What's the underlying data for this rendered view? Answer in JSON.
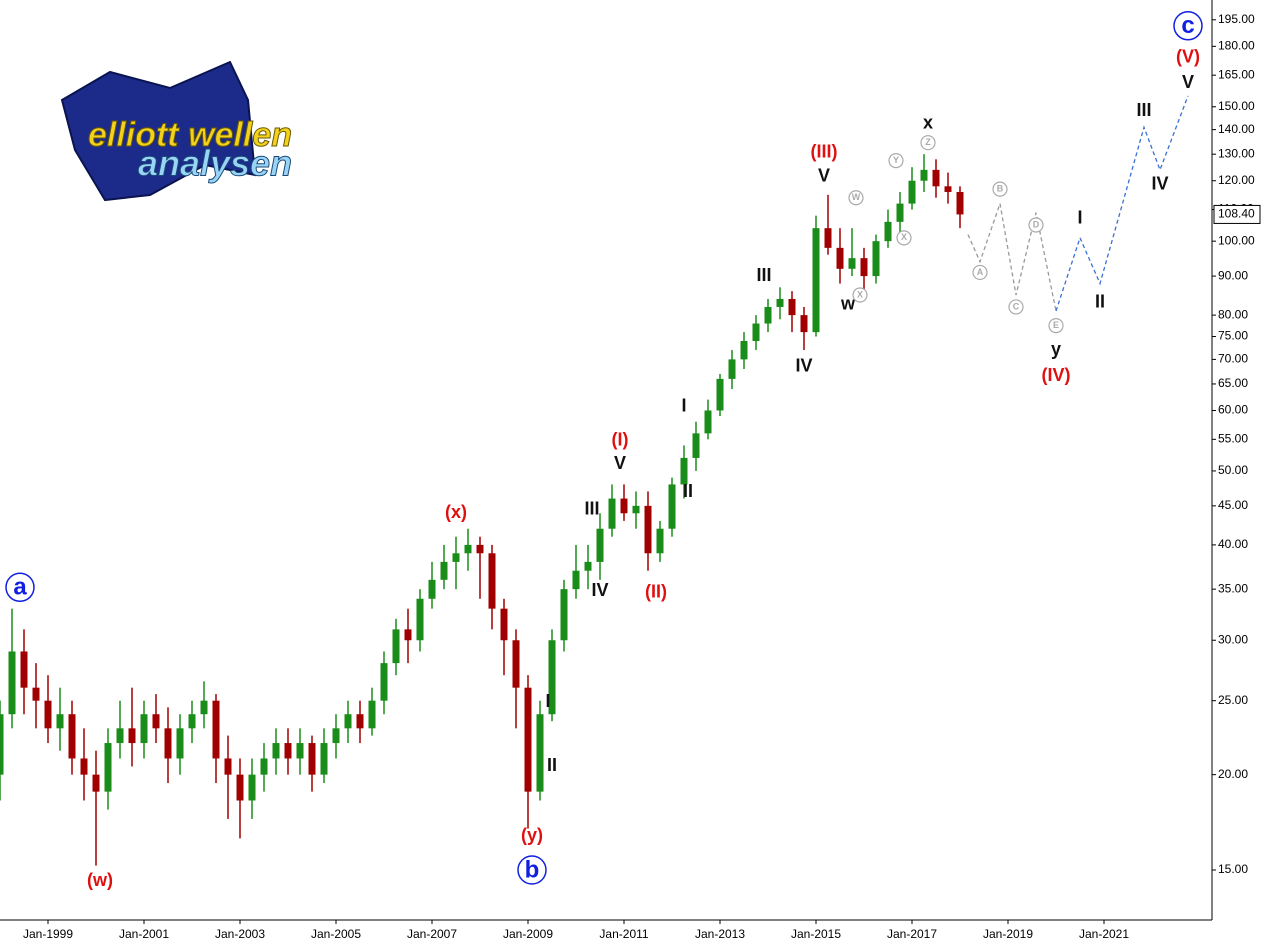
{
  "logo": {
    "line1": "elliott wellen",
    "line2": "analysen"
  },
  "chart_data": {
    "type": "candlestick",
    "log_scale": true,
    "xlim": [
      "Jan-1998",
      "Apr-2023"
    ],
    "xticks": [
      "Jan-1999",
      "Jan-2001",
      "Jan-2003",
      "Jan-2005",
      "Jan-2007",
      "Jan-2009",
      "Jan-2011",
      "Jan-2013",
      "Jan-2015",
      "Jan-2017",
      "Jan-2019",
      "Jan-2021"
    ],
    "ylim": [
      12.9,
      207
    ],
    "yticks": [
      {
        "value": 15,
        "label": "15.00"
      },
      {
        "value": 20,
        "label": "20.00"
      },
      {
        "value": 25,
        "label": "25.00"
      },
      {
        "value": 30,
        "label": "30.00"
      },
      {
        "value": 35,
        "label": "35.00"
      },
      {
        "value": 40,
        "label": "40.00"
      },
      {
        "value": 45,
        "label": "45.00"
      },
      {
        "value": 50,
        "label": "50.00"
      },
      {
        "value": 55,
        "label": "55.00"
      },
      {
        "value": 60,
        "label": "60.00"
      },
      {
        "value": 65,
        "label": "65.00"
      },
      {
        "value": 70,
        "label": "70.00"
      },
      {
        "value": 75,
        "label": "75.00"
      },
      {
        "value": 80,
        "label": "80.00"
      },
      {
        "value": 90,
        "label": "90.00"
      },
      {
        "value": 100,
        "label": "100.00"
      },
      {
        "value": 110,
        "label": "110.00"
      },
      {
        "value": 120,
        "label": "120.00"
      },
      {
        "value": 130,
        "label": "130.00"
      },
      {
        "value": 140,
        "label": "140.00"
      },
      {
        "value": 150,
        "label": "150.00"
      },
      {
        "value": 165,
        "label": "165.00"
      },
      {
        "value": 180,
        "label": "180.00"
      },
      {
        "value": 195,
        "label": "195.00"
      }
    ],
    "up_color": "#1a8c1a",
    "down_color": "#a00000",
    "x": [
      "Jan-1998",
      "Apr-1998",
      "Jul-1998",
      "Oct-1998",
      "Jan-1999",
      "Apr-1999",
      "Jul-1999",
      "Oct-1999",
      "Jan-2000",
      "Apr-2000",
      "Jul-2000",
      "Oct-2000",
      "Jan-2001",
      "Apr-2001",
      "Jul-2001",
      "Oct-2001",
      "Jan-2002",
      "Apr-2002",
      "Jul-2002",
      "Oct-2002",
      "Jan-2003",
      "Apr-2003",
      "Jul-2003",
      "Oct-2003",
      "Jan-2004",
      "Apr-2004",
      "Jul-2004",
      "Oct-2004",
      "Jan-2005",
      "Apr-2005",
      "Jul-2005",
      "Oct-2005",
      "Jan-2006",
      "Apr-2006",
      "Jul-2006",
      "Oct-2006",
      "Jan-2007",
      "Apr-2007",
      "Jul-2007",
      "Oct-2007",
      "Jan-2008",
      "Apr-2008",
      "Jul-2008",
      "Oct-2008",
      "Jan-2009",
      "Apr-2009",
      "Jul-2009",
      "Oct-2009",
      "Jan-2010",
      "Apr-2010",
      "Jul-2010",
      "Oct-2010",
      "Jan-2011",
      "Apr-2011",
      "Jul-2011",
      "Oct-2011",
      "Jan-2012",
      "Apr-2012",
      "Jul-2012",
      "Oct-2012",
      "Jan-2013",
      "Apr-2013",
      "Jul-2013",
      "Oct-2013",
      "Jan-2014",
      "Apr-2014",
      "Jul-2014",
      "Oct-2014",
      "Jan-2015",
      "Apr-2015",
      "Jul-2015",
      "Oct-2015",
      "Jan-2016",
      "Apr-2016",
      "Jul-2016",
      "Oct-2016",
      "Jan-2017",
      "Apr-2017",
      "Jul-2017",
      "Oct-2017",
      "Jan-2018"
    ],
    "open": [
      20,
      24,
      29,
      26,
      25,
      23,
      24,
      21,
      20,
      19,
      22,
      23,
      22,
      24,
      23,
      21,
      23,
      24,
      25,
      21,
      20,
      18.5,
      20,
      21,
      22,
      21,
      22,
      20,
      22,
      23,
      24,
      23,
      25,
      28,
      31,
      30,
      34,
      36,
      38,
      39,
      40,
      39,
      33,
      30,
      26,
      19,
      24,
      30,
      35,
      37,
      38,
      42,
      46,
      44,
      45,
      39,
      42,
      48,
      52,
      56,
      60,
      66,
      70,
      74,
      78,
      82,
      84,
      80,
      76,
      104,
      98,
      92,
      95,
      90,
      100,
      106,
      112,
      120,
      124,
      118,
      116
    ],
    "high": [
      25,
      33,
      31,
      28,
      27,
      26,
      25,
      23,
      21.5,
      23,
      25,
      26,
      25,
      25.5,
      24.5,
      24,
      25,
      26.5,
      25.5,
      22.5,
      21,
      21,
      22,
      23,
      23,
      23,
      22.5,
      23,
      24,
      25,
      25,
      26,
      29,
      32,
      33,
      35,
      38,
      40,
      41,
      42,
      41,
      40,
      34,
      31,
      27,
      25,
      31,
      36,
      40,
      40,
      44,
      48,
      48,
      47,
      47,
      43,
      49,
      54,
      58,
      62,
      67,
      72,
      76,
      80,
      84,
      87,
      86,
      82,
      108,
      115,
      104,
      104,
      98,
      102,
      110,
      116,
      125,
      130,
      128,
      123,
      118
    ],
    "low": [
      18.5,
      23,
      24,
      23,
      22,
      21.5,
      20,
      18.5,
      15.2,
      18,
      21,
      20.5,
      21,
      22,
      19.5,
      20,
      22,
      23,
      19.5,
      17.5,
      16.5,
      17.5,
      19,
      20,
      20,
      20,
      19,
      19.5,
      21,
      22,
      22,
      22.5,
      24,
      27,
      28,
      29,
      33,
      35,
      35,
      37,
      34,
      31,
      27,
      23,
      17,
      18.5,
      23.5,
      29,
      34,
      35,
      36,
      41,
      43,
      42,
      37,
      38,
      41,
      46,
      50,
      55,
      59,
      64,
      68,
      72,
      76,
      79,
      76,
      72,
      75,
      96,
      88,
      90,
      86,
      88,
      98,
      102,
      110,
      116,
      114,
      112,
      104
    ],
    "close": [
      24,
      29,
      26,
      25,
      23,
      24,
      21,
      20,
      19,
      22,
      23,
      22,
      24,
      23,
      21,
      23,
      24,
      25,
      21,
      20,
      18.5,
      20,
      21,
      22,
      21,
      22,
      20,
      22,
      23,
      24,
      23,
      25,
      28,
      31,
      30,
      34,
      36,
      38,
      39,
      40,
      39,
      33,
      30,
      26,
      19,
      24,
      30,
      35,
      37,
      38,
      42,
      46,
      44,
      45,
      39,
      42,
      48,
      52,
      56,
      60,
      66,
      70,
      74,
      78,
      82,
      84,
      80,
      76,
      104,
      98,
      92,
      95,
      90,
      100,
      106,
      112,
      120,
      124,
      118,
      116,
      108.4
    ],
    "last_price": {
      "value": 108.4,
      "label": "108.40"
    },
    "projections": [
      {
        "color": "#999999",
        "x": [
          "Mar-2018",
          "Jun-2018",
          "Nov-2018",
          "Mar-2019",
          "Aug-2019",
          "Jan-2020"
        ],
        "values": [
          102,
          94,
          112,
          85,
          109,
          81
        ]
      },
      {
        "color": "#3b6fd4",
        "x": [
          "Jan-2020",
          "Jul-2020",
          "Dec-2020",
          "Nov-2021",
          "Mar-2022",
          "Oct-2022"
        ],
        "values": [
          81,
          101,
          88,
          141,
          124,
          155
        ]
      }
    ],
    "annotations": [
      {
        "text": "a",
        "x": "Jun-1998",
        "y": 35.2,
        "color": "#1020e0",
        "style": "circle"
      },
      {
        "text": "(w)",
        "x": "Feb-2000",
        "y": 14.5,
        "color": "#e01010",
        "style": "plain"
      },
      {
        "text": "(x)",
        "x": "Jul-2007",
        "y": 44,
        "color": "#e01010",
        "style": "plain"
      },
      {
        "text": "(y)",
        "x": "Feb-2009",
        "y": 16.6,
        "color": "#e01010",
        "style": "plain"
      },
      {
        "text": "b",
        "x": "Feb-2009",
        "y": 15,
        "color": "#1020e0",
        "style": "circle"
      },
      {
        "text": "I",
        "x": "Jun-2009",
        "y": 24.9,
        "color": "#111111",
        "style": "plain"
      },
      {
        "text": "II",
        "x": "Jul-2009",
        "y": 20.5,
        "color": "#111111",
        "style": "plain"
      },
      {
        "text": "III",
        "x": "May-2010",
        "y": 44.5,
        "color": "#111111",
        "style": "plain"
      },
      {
        "text": "IV",
        "x": "Jul-2010",
        "y": 34.8,
        "color": "#111111",
        "style": "plain"
      },
      {
        "text": "V",
        "x": "Dec-2010",
        "y": 51,
        "color": "#111111",
        "style": "plain"
      },
      {
        "text": "(I)",
        "x": "Dec-2010",
        "y": 54.8,
        "color": "#e01010",
        "style": "plain"
      },
      {
        "text": "(II)",
        "x": "Sep-2011",
        "y": 34.6,
        "color": "#e01010",
        "style": "plain"
      },
      {
        "text": "I",
        "x": "Apr-2012",
        "y": 60.7,
        "color": "#111111",
        "style": "plain"
      },
      {
        "text": "II",
        "x": "May-2012",
        "y": 46.9,
        "color": "#111111",
        "style": "plain"
      },
      {
        "text": "III",
        "x": "Dec-2013",
        "y": 90,
        "color": "#111111",
        "style": "plain"
      },
      {
        "text": "IV",
        "x": "Oct-2014",
        "y": 68.5,
        "color": "#111111",
        "style": "plain"
      },
      {
        "text": "V",
        "x": "Mar-2015",
        "y": 121.5,
        "color": "#111111",
        "style": "plain"
      },
      {
        "text": "(III)",
        "x": "Mar-2015",
        "y": 130.6,
        "color": "#e01010",
        "style": "plain"
      },
      {
        "text": "w",
        "x": "Sep-2015",
        "y": 82.6,
        "color": "#111111",
        "style": "plain"
      },
      {
        "text": "x",
        "x": "May-2017",
        "y": 142.5,
        "color": "#111111",
        "style": "plain"
      },
      {
        "text": "y",
        "x": "Jan-2020",
        "y": 72,
        "color": "#111111",
        "style": "plain"
      },
      {
        "text": "(IV)",
        "x": "Jan-2020",
        "y": 66.5,
        "color": "#e01010",
        "style": "plain"
      },
      {
        "text": "I",
        "x": "Jul-2020",
        "y": 107,
        "color": "#111111",
        "style": "plain"
      },
      {
        "text": "II",
        "x": "Dec-2020",
        "y": 83,
        "color": "#111111",
        "style": "plain"
      },
      {
        "text": "III",
        "x": "Nov-2021",
        "y": 148,
        "color": "#111111",
        "style": "plain"
      },
      {
        "text": "IV",
        "x": "Mar-2022",
        "y": 118.6,
        "color": "#111111",
        "style": "plain"
      },
      {
        "text": "V",
        "x": "Oct-2022",
        "y": 161,
        "color": "#111111",
        "style": "plain"
      },
      {
        "text": "(V)",
        "x": "Oct-2022",
        "y": 174,
        "color": "#e01010",
        "style": "plain"
      },
      {
        "text": "c",
        "x": "Oct-2022",
        "y": 191.5,
        "color": "#1020e0",
        "style": "circle"
      },
      {
        "text": "W",
        "x": "Nov-2015",
        "y": 114,
        "color": "#aaaaaa",
        "style": "small"
      },
      {
        "text": "X",
        "x": "Dec-2015",
        "y": 85,
        "color": "#aaaaaa",
        "style": "small"
      },
      {
        "text": "X",
        "x": "Nov-2016",
        "y": 101,
        "color": "#aaaaaa",
        "style": "small"
      },
      {
        "text": "Y",
        "x": "Sep-2016",
        "y": 127.5,
        "color": "#aaaaaa",
        "style": "small"
      },
      {
        "text": "Z",
        "x": "May-2017",
        "y": 134.6,
        "color": "#aaaaaa",
        "style": "small"
      },
      {
        "text": "A",
        "x": "Jun-2018",
        "y": 91,
        "color": "#aaaaaa",
        "style": "small"
      },
      {
        "text": "B",
        "x": "Nov-2018",
        "y": 117,
        "color": "#aaaaaa",
        "style": "small"
      },
      {
        "text": "C",
        "x": "Mar-2019",
        "y": 82,
        "color": "#aaaaaa",
        "style": "small"
      },
      {
        "text": "D",
        "x": "Aug-2019",
        "y": 105,
        "color": "#aaaaaa",
        "style": "small"
      },
      {
        "text": "E",
        "x": "Jan-2020",
        "y": 77.5,
        "color": "#aaaaaa",
        "style": "small"
      }
    ]
  }
}
